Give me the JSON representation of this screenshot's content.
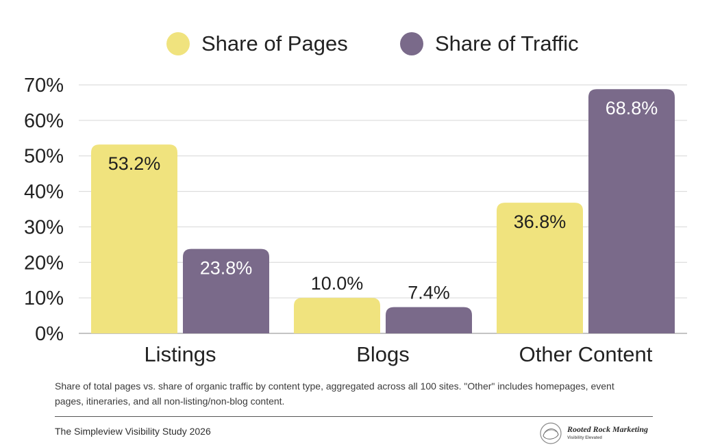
{
  "chart_data": {
    "type": "bar",
    "categories": [
      "Listings",
      "Blogs",
      "Other Content"
    ],
    "series": [
      {
        "name": "Share of Pages",
        "values": [
          53.2,
          10.0,
          36.8
        ],
        "labels": [
          "53.2%",
          "10.0%",
          "36.8%"
        ],
        "color": "#F0E37E"
      },
      {
        "name": "Share of Traffic",
        "values": [
          23.8,
          7.4,
          68.8
        ],
        "labels": [
          "23.8%",
          "7.4%",
          "68.8%"
        ],
        "color": "#7A6A8A"
      }
    ],
    "ylim": [
      0,
      70
    ],
    "yticks": [
      0,
      10,
      20,
      30,
      40,
      50,
      60,
      70
    ],
    "ytick_labels": [
      "0%",
      "10%",
      "20%",
      "30%",
      "40%",
      "50%",
      "60%",
      "70%"
    ],
    "grid": true,
    "legend_position": "top-center"
  },
  "footnote": "Share of total pages vs. share of organic traffic by content type, aggregated across all 100 sites. \"Other\" includes homepages, event pages, itineraries, and all non-listing/non-blog content.",
  "footer": {
    "study_title": "The Simpleview Visibility Study 2026",
    "brand_name": "Rooted Rock Marketing",
    "brand_tagline": "Visibility Elevated"
  }
}
